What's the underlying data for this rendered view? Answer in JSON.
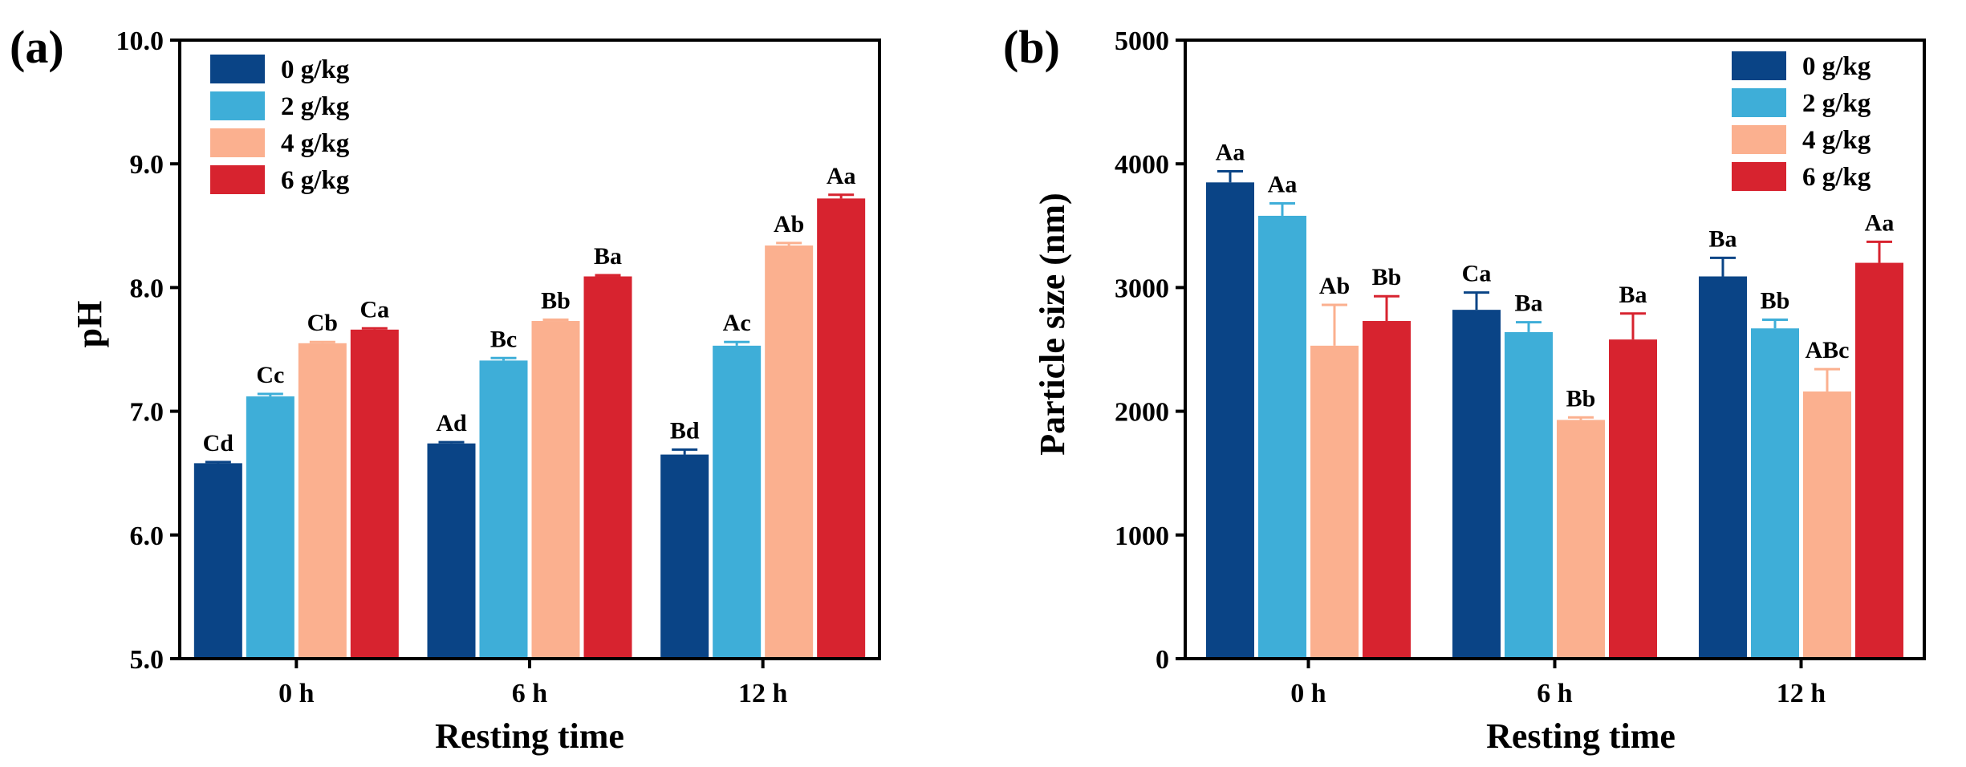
{
  "colors": {
    "0 g/kg": "#0a4486",
    "2 g/kg": "#3eaed8",
    "4 g/kg": "#fbb08f",
    "6 g/kg": "#d7232f"
  },
  "chart_data": [
    {
      "panel_label": "(a)",
      "type": "bar",
      "xlabel": "Resting time",
      "ylabel": "pH",
      "ylim": [
        5.0,
        10.0
      ],
      "yticks": [
        "5.0",
        "6.0",
        "7.0",
        "8.0",
        "9.0",
        "10.0"
      ],
      "categories": [
        "0 h",
        "6 h",
        "12 h"
      ],
      "legend_position": "top-left",
      "series": [
        {
          "name": "0 g/kg",
          "values": [
            6.58,
            6.74,
            6.65
          ],
          "errors": [
            0.01,
            0.01,
            0.04
          ],
          "labels": [
            "Cd",
            "Ad",
            "Bd"
          ]
        },
        {
          "name": "2 g/kg",
          "values": [
            7.12,
            7.41,
            7.53
          ],
          "errors": [
            0.02,
            0.02,
            0.03
          ],
          "labels": [
            "Cc",
            "Bc",
            "Ac"
          ]
        },
        {
          "name": "4 g/kg",
          "values": [
            7.55,
            7.73,
            8.34
          ],
          "errors": [
            0.01,
            0.01,
            0.02
          ],
          "labels": [
            "Cb",
            "Bb",
            "Ab"
          ]
        },
        {
          "name": "6 g/kg",
          "values": [
            7.66,
            8.09,
            8.72
          ],
          "errors": [
            0.01,
            0.01,
            0.03
          ],
          "labels": [
            "Ca",
            "Ba",
            "Aa"
          ]
        }
      ]
    },
    {
      "panel_label": "(b)",
      "type": "bar",
      "xlabel": "Resting time",
      "ylabel": "Particle size (nm)",
      "ylim": [
        0,
        5000
      ],
      "yticks": [
        "0",
        "1000",
        "2000",
        "3000",
        "4000",
        "5000"
      ],
      "categories": [
        "0 h",
        "6 h",
        "12 h"
      ],
      "legend_position": "top-right",
      "series": [
        {
          "name": "0 g/kg",
          "values": [
            3850,
            2820,
            3090
          ],
          "errors": [
            90,
            140,
            150
          ],
          "labels": [
            "Aa",
            "Ca",
            "Ba"
          ]
        },
        {
          "name": "2 g/kg",
          "values": [
            3580,
            2640,
            2670
          ],
          "errors": [
            100,
            80,
            70
          ],
          "labels": [
            "Aa",
            "Ba",
            "Bb"
          ]
        },
        {
          "name": "4 g/kg",
          "values": [
            2530,
            1930,
            2160
          ],
          "errors": [
            330,
            20,
            180
          ],
          "labels": [
            "Ab",
            "Bb",
            "ABc"
          ]
        },
        {
          "name": "6 g/kg",
          "values": [
            2730,
            2580,
            3200
          ],
          "errors": [
            200,
            210,
            170
          ],
          "labels": [
            "Bb",
            "Ba",
            "Aa"
          ]
        }
      ]
    }
  ]
}
